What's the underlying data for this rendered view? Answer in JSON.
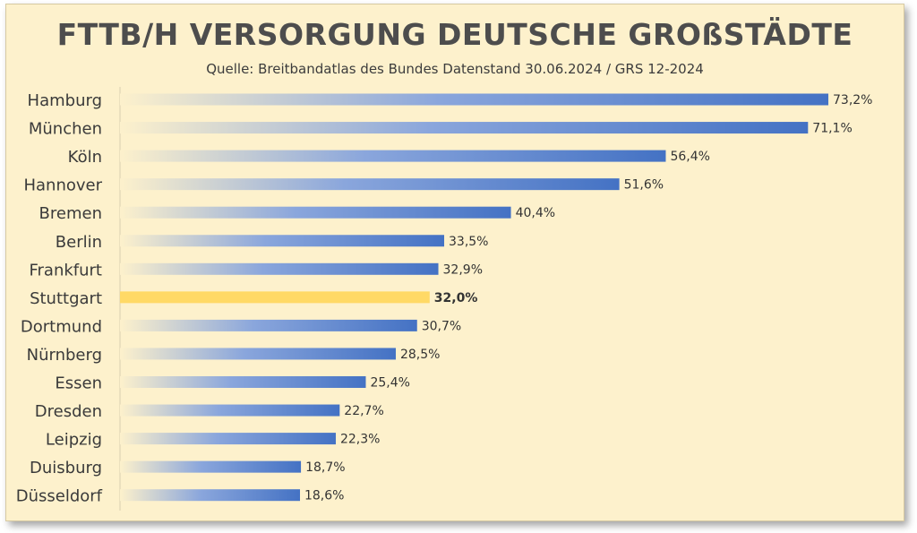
{
  "title": "FTTB/H VERSORGUNG DEUTSCHE GROßSTÄDTE",
  "subtitle": "Quelle: Breitbandatlas des Bundes Datenstand 30.06.2024 / GRS 12-2024",
  "colors": {
    "bar": "#4472c4",
    "bar_fade": "#fdf1cc",
    "highlight": "#ffd966",
    "background": "#fdf1cc"
  },
  "chart_data": {
    "type": "bar",
    "orientation": "horizontal",
    "categories": [
      "Hamburg",
      "München",
      "Köln",
      "Hannover",
      "Bremen",
      "Berlin",
      "Frankfurt",
      "Stuttgart",
      "Dortmund",
      "Nürnberg",
      "Essen",
      "Dresden",
      "Leipzig",
      "Duisburg",
      "Düsseldorf"
    ],
    "values": [
      73.2,
      71.1,
      56.4,
      51.6,
      40.4,
      33.5,
      32.9,
      32.0,
      30.7,
      28.5,
      25.4,
      22.7,
      22.3,
      18.7,
      18.6
    ],
    "data_labels": [
      "73,2%",
      "71,1%",
      "56,4%",
      "51,6%",
      "40,4%",
      "33,5%",
      "32,9%",
      "32,0%",
      "30,7%",
      "28,5%",
      "25,4%",
      "22,7%",
      "22,3%",
      "18,7%",
      "18,6%"
    ],
    "highlight": "Stuttgart",
    "unit": "%",
    "xlim": [
      0,
      73.2
    ],
    "grid": false,
    "legend": "none"
  }
}
